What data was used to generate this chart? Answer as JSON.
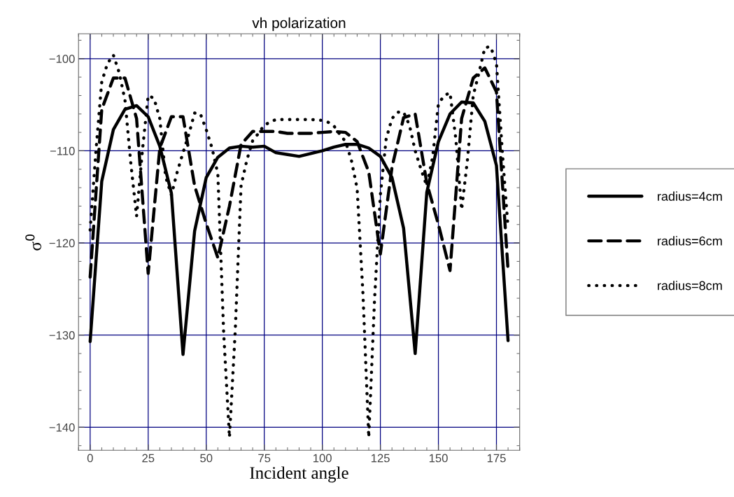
{
  "chart_data": {
    "type": "line",
    "title": "vh polarization",
    "xlabel": "Incident angle",
    "ylabel": "σ$^{0}$",
    "xlim": [
      -5,
      185
    ],
    "ylim": [
      -142.5,
      -97.3
    ],
    "xticks": [
      0,
      25,
      50,
      75,
      100,
      125,
      150,
      175
    ],
    "yticks": [
      -140,
      -130,
      -120,
      -110,
      -100
    ],
    "grid": true,
    "legend": "right",
    "marker": "none",
    "series": [
      {
        "name": "radius=4cm",
        "color": "#000000",
        "line_style": "solid",
        "x": [
          0,
          5,
          10,
          15,
          20,
          25,
          30,
          35,
          40,
          45,
          50,
          55,
          60,
          65,
          70,
          75,
          80,
          85,
          90,
          95,
          100,
          105,
          110,
          115,
          120,
          125,
          130,
          135,
          140,
          145,
          150,
          155,
          160,
          165,
          170,
          175,
          180
        ],
        "values": [
          -130.7,
          -113.3,
          -107.7,
          -105.5,
          -105.1,
          -106.3,
          -109.5,
          -114.6,
          -132.1,
          -118.7,
          -112.9,
          -110.7,
          -109.7,
          -109.5,
          -109.6,
          -109.5,
          -110.2,
          -110.4,
          -110.6,
          -110.3,
          -110.0,
          -109.6,
          -109.3,
          -109.3,
          -109.7,
          -110.6,
          -112.9,
          -118.4,
          -132.0,
          -114.5,
          -109.0,
          -106.0,
          -104.7,
          -104.8,
          -106.8,
          -111.6,
          -130.6
        ]
      },
      {
        "name": "radius=6cm",
        "color": "#000000",
        "line_style": "dashed",
        "x": [
          0,
          5,
          10,
          15,
          20,
          25,
          30,
          35,
          40,
          45,
          50,
          55,
          60,
          65,
          70,
          75,
          80,
          85,
          90,
          95,
          100,
          105,
          110,
          115,
          120,
          125,
          130,
          135,
          140,
          145,
          150,
          155,
          160,
          165,
          170,
          175,
          180
        ],
        "values": [
          -123.7,
          -105.5,
          -102.1,
          -102.1,
          -106.5,
          -123.3,
          -109.7,
          -106.3,
          -106.3,
          -113.8,
          -117.9,
          -121.6,
          -116.0,
          -109.3,
          -107.9,
          -107.9,
          -107.9,
          -108.1,
          -108.1,
          -108.1,
          -108.0,
          -107.9,
          -108.0,
          -109.0,
          -112.3,
          -121.2,
          -111.8,
          -106.4,
          -106.0,
          -113.5,
          -118.0,
          -123.0,
          -106.5,
          -102.1,
          -101.0,
          -103.6,
          -123.0
        ]
      },
      {
        "name": "radius=8cm",
        "color": "#000000",
        "line_style": "dotted",
        "x": [
          0,
          2.5,
          5,
          7.5,
          10,
          12.5,
          15,
          17.5,
          20,
          22.5,
          25,
          27.5,
          30,
          32.5,
          35,
          37.5,
          40,
          42.5,
          45,
          47.5,
          50,
          52.5,
          55,
          57.5,
          60,
          62.5,
          65,
          67.5,
          70,
          72.5,
          75,
          77.5,
          80,
          85,
          90,
          95,
          100,
          102.5,
          105,
          107.5,
          110,
          112.5,
          115,
          117.5,
          120,
          122.5,
          125,
          127.5,
          130,
          132.5,
          135,
          137.5,
          140,
          142.5,
          145,
          147.5,
          150,
          152.5,
          155,
          157.5,
          160,
          162.5,
          165,
          167.5,
          170,
          172.5,
          175,
          177.5,
          180
        ],
        "values": [
          -118.6,
          -110.0,
          -102.5,
          -100.5,
          -99.6,
          -101.5,
          -104.5,
          -111.3,
          -117.1,
          -110.0,
          -104.0,
          -104.3,
          -106.5,
          -112.8,
          -114.8,
          -112.3,
          -110.2,
          -108.2,
          -105.9,
          -106.0,
          -107.7,
          -109.7,
          -112.5,
          -129.7,
          -141.1,
          -129.5,
          -113.8,
          -111.0,
          -108.9,
          -108.1,
          -107.2,
          -106.9,
          -106.6,
          -106.6,
          -106.6,
          -106.6,
          -106.7,
          -106.9,
          -107.3,
          -108.2,
          -109.0,
          -111.0,
          -114.1,
          -125.5,
          -141.1,
          -126.1,
          -114.8,
          -108.7,
          -106.5,
          -105.8,
          -105.8,
          -107.2,
          -110.0,
          -112.0,
          -113.8,
          -110.7,
          -104.9,
          -104.0,
          -103.7,
          -108.7,
          -116.4,
          -111.0,
          -104.0,
          -101.5,
          -98.8,
          -98.7,
          -100.5,
          -110.0,
          -118.4
        ]
      }
    ]
  }
}
